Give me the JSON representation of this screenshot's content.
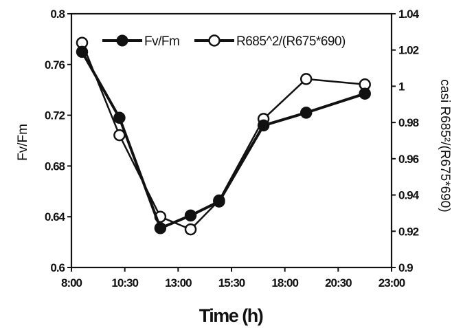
{
  "chart_data": {
    "type": "line",
    "xlabel": "Time (h)",
    "ylabel": "Fv/Fm",
    "y2label": "casi R685²/(R675*690)",
    "xlim": [
      8,
      23
    ],
    "ylim": [
      0.6,
      0.8
    ],
    "y2lim": [
      0.9,
      1.04
    ],
    "x_ticks": [
      "8:00",
      "10:30",
      "13:00",
      "15:30",
      "18:00",
      "20:30",
      "23:00"
    ],
    "y_ticks": [
      "0.6",
      "0.64",
      "0.68",
      "0.72",
      "0.76",
      "0.8"
    ],
    "y2_ticks": [
      "0.9",
      "0.92",
      "0.94",
      "0.96",
      "0.98",
      "1",
      "1.02",
      "1.04"
    ],
    "legend_position": "top",
    "grid": false,
    "series": [
      {
        "name": "Fv/Fm",
        "axis": "left",
        "marker": "filled-circle",
        "color": "#111111",
        "x": [
          "8:30",
          "10:15",
          "12:10",
          "13:35",
          "14:55",
          "17:00",
          "19:00",
          "21:45"
        ],
        "values": [
          0.77,
          0.718,
          0.631,
          0.641,
          0.652,
          0.712,
          0.722,
          0.737
        ]
      },
      {
        "name": "R685^2/(R675*690)",
        "axis": "right",
        "marker": "open-circle",
        "color": "#111111",
        "x": [
          "8:30",
          "10:15",
          "12:10",
          "13:35",
          "14:55",
          "17:00",
          "19:00",
          "21:45"
        ],
        "values": [
          1.024,
          0.973,
          0.928,
          0.921,
          0.937,
          0.982,
          1.004,
          1.001
        ]
      }
    ]
  }
}
